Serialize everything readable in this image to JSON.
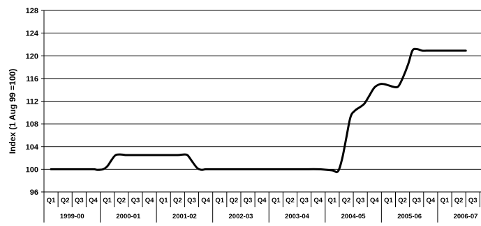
{
  "chart_data": {
    "type": "line",
    "title": "",
    "xlabel": "",
    "ylabel": "Index (1 Aug 99 =100)",
    "ylim": [
      96,
      128
    ],
    "yticks": [
      96,
      100,
      104,
      108,
      112,
      116,
      120,
      124,
      128
    ],
    "grid": true,
    "quarter_labels": [
      "Q1",
      "Q2",
      "Q3",
      "Q4",
      "Q1",
      "Q2",
      "Q3",
      "Q4",
      "Q1",
      "Q2",
      "Q3",
      "Q4",
      "Q1",
      "Q2",
      "Q3",
      "Q4",
      "Q1",
      "Q2",
      "Q3",
      "Q4",
      "Q1",
      "Q2",
      "Q3",
      "Q4",
      "Q1",
      "Q2",
      "Q3",
      "Q4",
      "Q1",
      "Q2",
      "Q3",
      "Q"
    ],
    "year_labels": [
      "1999-00",
      "2000-01",
      "2001-02",
      "2002-03",
      "2003-04",
      "2004-05",
      "2005-06",
      "2006-07"
    ],
    "series": [
      {
        "name": "",
        "color": "#000000",
        "x": [
          0,
          1,
          2,
          3,
          3.3,
          3.7,
          4,
          4.3,
          4.6,
          5,
          5.3,
          5.6,
          6,
          7,
          8,
          9,
          9.4,
          9.7,
          10,
          10.4,
          10.7,
          11,
          11.3,
          11.6,
          12,
          13,
          14,
          15,
          16,
          17,
          18,
          19,
          20,
          20.4,
          20.7,
          21,
          21.3,
          21.6,
          22,
          22.3,
          22.6,
          23,
          23.4,
          23.7,
          24,
          24.4,
          24.7,
          25,
          25.4,
          25.7,
          26,
          26.4,
          26.7,
          27,
          27.2,
          27.4,
          27.7,
          28,
          28.5,
          29,
          29.5
        ],
        "values": [
          100,
          100,
          100,
          100,
          99.9,
          100,
          100.5,
          101.6,
          102.5,
          102.6,
          102.5,
          102.5,
          102.5,
          102.5,
          102.5,
          102.5,
          102.6,
          102.5,
          101.5,
          100.2,
          99.9,
          100,
          100,
          100,
          100,
          100,
          100,
          100,
          100,
          100,
          100,
          100,
          99.8,
          99.6,
          101.8,
          105.5,
          109.2,
          110.3,
          111,
          111.6,
          112.8,
          114.4,
          115,
          115,
          114.8,
          114.5,
          114.6,
          116,
          118.5,
          120.9,
          121.2,
          120.9,
          120.9,
          120.9,
          120.9,
          120.9,
          120.9,
          120.9,
          120.9,
          120.9,
          120.9
        ]
      }
    ]
  }
}
